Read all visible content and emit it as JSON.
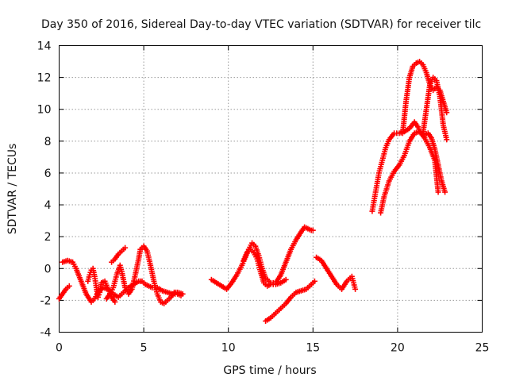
{
  "chart_data": {
    "type": "scatter",
    "title": "Day 350 of 2016, Sidereal Day-to-day VTEC variation (SDTVAR) for receiver tilc",
    "xlabel": "GPS time / hours",
    "ylabel": "SDTVAR / TECUs",
    "xlim": [
      0,
      25
    ],
    "ylim": [
      -4,
      14
    ],
    "xticks": [
      "0",
      "5",
      "10",
      "15",
      "20",
      "25"
    ],
    "yticks": [
      "-4",
      "-2",
      "0",
      "2",
      "4",
      "6",
      "8",
      "10",
      "12",
      "14"
    ],
    "grid": true,
    "marker": "plus",
    "color": "#ff0000",
    "series": [
      {
        "x": [
          0.0,
          0.2,
          0.4,
          0.6
        ],
        "y": [
          -1.9,
          -1.6,
          -1.3,
          -1.1
        ]
      },
      {
        "x": [
          0.2,
          0.5,
          0.8,
          1.0,
          1.3,
          1.6,
          1.9,
          2.1,
          2.3,
          2.6,
          2.9,
          3.2,
          3.5,
          3.8,
          4.1,
          4.4,
          4.7,
          4.9,
          5.1,
          5.3,
          5.5,
          5.8,
          6.1,
          6.4,
          6.7,
          7.0,
          7.2
        ],
        "y": [
          0.4,
          0.5,
          0.4,
          0.0,
          -0.8,
          -1.6,
          -2.1,
          -1.9,
          -1.5,
          -1.2,
          -1.3,
          -1.6,
          -1.8,
          -1.5,
          -1.2,
          -1.0,
          -0.8,
          -0.8,
          -1.0,
          -1.1,
          -1.2,
          -1.2,
          -1.4,
          -1.5,
          -1.6,
          -1.6,
          -1.7
        ]
      },
      {
        "x": [
          1.7,
          1.8,
          1.9,
          2.0,
          2.1,
          2.2,
          2.3,
          2.4,
          2.5,
          2.7,
          2.9,
          3.1,
          3.3
        ],
        "y": [
          -0.8,
          -0.4,
          -0.1,
          0.0,
          -0.5,
          -1.2,
          -1.8,
          -1.5,
          -0.9,
          -0.8,
          -1.3,
          -1.8,
          -2.1
        ]
      },
      {
        "x": [
          2.8,
          3.0,
          3.2,
          3.4,
          3.6,
          3.7,
          3.9,
          4.1,
          4.3,
          4.5,
          4.7,
          4.8,
          5.0,
          5.2,
          5.4,
          5.6,
          5.8,
          6.0,
          6.2,
          6.4,
          6.6,
          6.8,
          7.0,
          7.3
        ],
        "y": [
          -1.9,
          -1.6,
          -1.2,
          -0.4,
          0.2,
          -0.2,
          -1.2,
          -1.6,
          -1.3,
          -0.4,
          0.6,
          1.2,
          1.4,
          1.1,
          0.2,
          -0.8,
          -1.6,
          -2.1,
          -2.2,
          -2.0,
          -1.8,
          -1.5,
          -1.5,
          -1.6
        ]
      },
      {
        "x": [
          3.1,
          3.3,
          3.5,
          3.7,
          3.9
        ],
        "y": [
          0.4,
          0.6,
          0.9,
          1.1,
          1.3
        ]
      },
      {
        "x": [
          9.0,
          9.3,
          9.6,
          9.9,
          10.2,
          10.5,
          10.8,
          11.0,
          11.2,
          11.4,
          11.6,
          11.8,
          12.0,
          12.2,
          12.5,
          12.8,
          13.1,
          13.4,
          13.7,
          14.0,
          14.3,
          14.5,
          14.7,
          14.9,
          15.0
        ],
        "y": [
          -0.7,
          -0.9,
          -1.1,
          -1.3,
          -0.9,
          -0.4,
          0.2,
          0.7,
          1.2,
          1.6,
          1.4,
          0.8,
          0.0,
          -0.6,
          -0.9,
          -0.9,
          -0.4,
          0.4,
          1.2,
          1.8,
          2.3,
          2.6,
          2.5,
          2.4,
          2.4
        ]
      },
      {
        "x": [
          10.9,
          11.1,
          11.3,
          11.5,
          11.7,
          11.9,
          12.1,
          12.3,
          12.5,
          12.8,
          13.1,
          13.4
        ],
        "y": [
          0.5,
          1.0,
          1.2,
          1.0,
          0.6,
          -0.2,
          -0.9,
          -1.1,
          -1.0,
          -1.0,
          -0.9,
          -0.7
        ]
      },
      {
        "x": [
          12.2,
          12.5,
          12.8,
          13.1,
          13.4,
          13.7,
          14.0,
          14.3,
          14.6,
          14.9,
          15.1
        ],
        "y": [
          -3.3,
          -3.1,
          -2.8,
          -2.5,
          -2.2,
          -1.8,
          -1.5,
          -1.4,
          -1.3,
          -1.0,
          -0.8
        ]
      },
      {
        "x": [
          15.2,
          15.5,
          15.8,
          16.1,
          16.4,
          16.7,
          17.0,
          17.3,
          17.5
        ],
        "y": [
          0.7,
          0.5,
          0.0,
          -0.5,
          -1.0,
          -1.3,
          -0.8,
          -0.5,
          -1.3
        ]
      },
      {
        "x": [
          18.5,
          18.7,
          18.9,
          19.1,
          19.3,
          19.5,
          19.8,
          20.1,
          20.4,
          20.7,
          21.0,
          21.2,
          21.4,
          21.6,
          21.8,
          22.0,
          22.2,
          22.4,
          22.6,
          22.8
        ],
        "y": [
          3.6,
          4.8,
          6.0,
          6.8,
          7.6,
          8.1,
          8.5,
          8.5,
          8.6,
          8.8,
          9.2,
          8.9,
          8.5,
          8.4,
          8.5,
          8.2,
          7.5,
          6.5,
          5.5,
          4.8
        ]
      },
      {
        "x": [
          19.0,
          19.2,
          19.5,
          19.8,
          20.1,
          20.4,
          20.7,
          21.0,
          21.3,
          21.6,
          21.9,
          22.2,
          22.4
        ],
        "y": [
          3.5,
          4.5,
          5.5,
          6.1,
          6.5,
          7.1,
          8.0,
          8.5,
          8.6,
          8.2,
          7.6,
          6.8,
          4.8
        ]
      },
      {
        "x": [
          20.3,
          20.5,
          20.7,
          20.9,
          21.1,
          21.3,
          21.5,
          21.7,
          21.9,
          22.1,
          22.3,
          22.5,
          22.7,
          22.9
        ],
        "y": [
          8.5,
          10.5,
          12.0,
          12.7,
          12.9,
          13.0,
          12.8,
          12.3,
          11.6,
          11.2,
          11.4,
          11.2,
          10.5,
          9.8
        ]
      },
      {
        "x": [
          21.5,
          21.7,
          21.9,
          22.1,
          22.3,
          22.5,
          22.7,
          22.9
        ],
        "y": [
          8.5,
          10.0,
          11.5,
          12.0,
          11.8,
          10.8,
          9.0,
          8.1
        ]
      }
    ]
  }
}
